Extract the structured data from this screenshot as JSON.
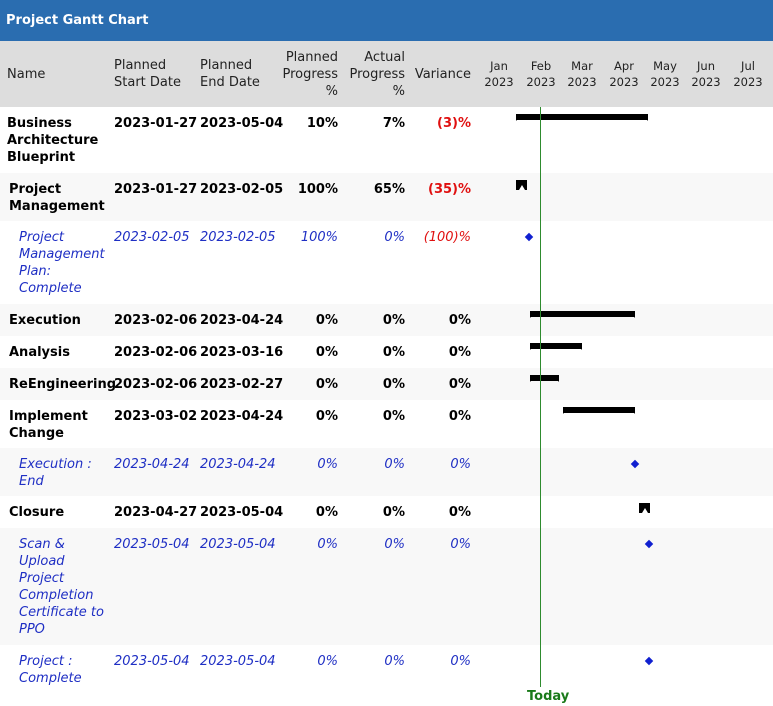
{
  "title": "Project Gantt Chart",
  "columns": {
    "name": "Name",
    "planned_start": [
      "Planned",
      "Start Date"
    ],
    "planned_end": [
      "Planned",
      "End Date"
    ],
    "planned_progress": [
      "Planned",
      "Progress",
      "%"
    ],
    "actual_progress": [
      "Actual",
      "Progress",
      "%"
    ],
    "variance": "Variance"
  },
  "months": [
    {
      "m": "Jan",
      "y": "2023"
    },
    {
      "m": "Feb",
      "y": "2023"
    },
    {
      "m": "Mar",
      "y": "2023"
    },
    {
      "m": "Apr",
      "y": "2023"
    },
    {
      "m": "May",
      "y": "2023"
    },
    {
      "m": "Jun",
      "y": "2023"
    },
    {
      "m": "Jul",
      "y": "2023"
    }
  ],
  "today_label": "Today",
  "today_date": "2023-02-08",
  "rows": [
    {
      "name": [
        "Business",
        "Architecture",
        "Blueprint"
      ],
      "start": "2023-01-27",
      "end": "2023-05-04",
      "pp": "10%",
      "ap": "7%",
      "var": "(3)%",
      "type": "summary",
      "neg": true,
      "indent": 0
    },
    {
      "name": [
        "Project",
        "Management"
      ],
      "start": "2023-01-27",
      "end": "2023-02-05",
      "pp": "100%",
      "ap": "65%",
      "var": "(35)%",
      "type": "flag",
      "neg": true,
      "indent": 1
    },
    {
      "name": [
        "Project",
        "Management",
        "Plan:",
        "Complete"
      ],
      "start": "2023-02-05",
      "end": "2023-02-05",
      "pp": "100%",
      "ap": "0%",
      "var": "(100)%",
      "type": "milestone",
      "neg": true,
      "indent": 2
    },
    {
      "name": [
        "Execution"
      ],
      "start": "2023-02-06",
      "end": "2023-04-24",
      "pp": "0%",
      "ap": "0%",
      "var": "0%",
      "type": "summary",
      "neg": false,
      "indent": 1
    },
    {
      "name": [
        "Analysis"
      ],
      "start": "2023-02-06",
      "end": "2023-03-16",
      "pp": "0%",
      "ap": "0%",
      "var": "0%",
      "type": "summary",
      "neg": false,
      "indent": 1
    },
    {
      "name": [
        "ReEngineering"
      ],
      "start": "2023-02-06",
      "end": "2023-02-27",
      "pp": "0%",
      "ap": "0%",
      "var": "0%",
      "type": "summary",
      "neg": false,
      "indent": 1
    },
    {
      "name": [
        "Implement",
        "Change"
      ],
      "start": "2023-03-02",
      "end": "2023-04-24",
      "pp": "0%",
      "ap": "0%",
      "var": "0%",
      "type": "summary",
      "neg": false,
      "indent": 1
    },
    {
      "name": [
        "Execution :",
        "End"
      ],
      "start": "2023-04-24",
      "end": "2023-04-24",
      "pp": "0%",
      "ap": "0%",
      "var": "0%",
      "type": "milestone",
      "neg": false,
      "indent": 2
    },
    {
      "name": [
        "Closure"
      ],
      "start": "2023-04-27",
      "end": "2023-05-04",
      "pp": "0%",
      "ap": "0%",
      "var": "0%",
      "type": "flag",
      "neg": false,
      "indent": 1
    },
    {
      "name": [
        "Scan &",
        "Upload",
        "Project",
        "Completion",
        "Certificate to",
        "PPO"
      ],
      "start": "2023-05-04",
      "end": "2023-05-04",
      "pp": "0%",
      "ap": "0%",
      "var": "0%",
      "type": "milestone",
      "neg": false,
      "indent": 2
    },
    {
      "name": [
        "Project :",
        "Complete"
      ],
      "start": "2023-05-04",
      "end": "2023-05-04",
      "pp": "0%",
      "ap": "0%",
      "var": "0%",
      "type": "milestone",
      "neg": false,
      "indent": 2
    }
  ]
}
